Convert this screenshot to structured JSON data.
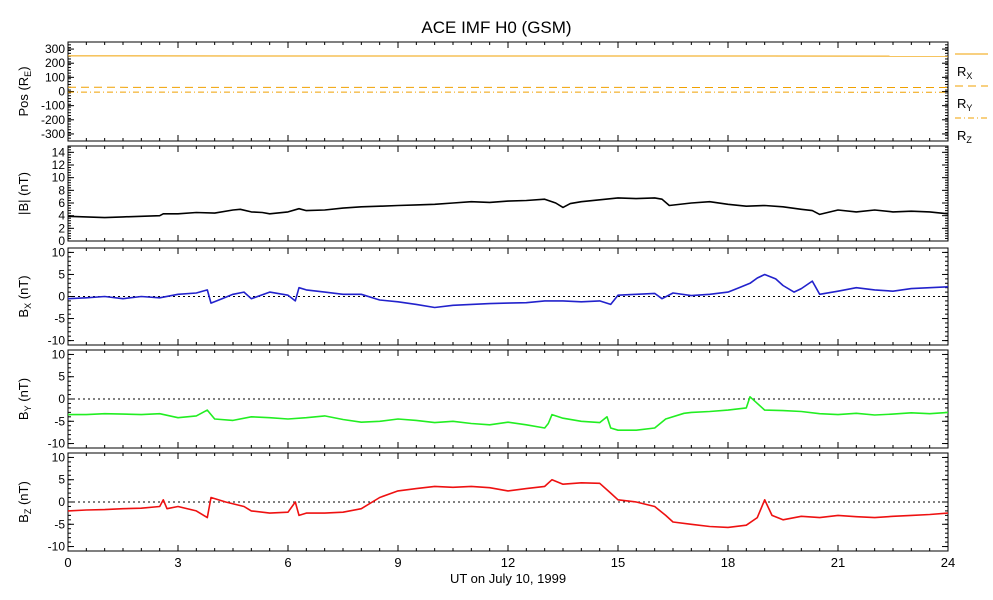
{
  "title": "ACE IMF H0 (GSM)",
  "xlabel": "UT on July 10, 1999",
  "x_ticks": [
    0,
    3,
    6,
    9,
    12,
    15,
    18,
    21,
    24
  ],
  "xlim": [
    0,
    24
  ],
  "colors": {
    "black": "#000000",
    "blue": "#2222cc",
    "green": "#22ee22",
    "red": "#ee1111",
    "orange": "#f0a000"
  },
  "chart_data": [
    {
      "type": "line",
      "panel": "position",
      "ylabel": "Pos (R",
      "ylabel_sub": "E",
      "ylabel_end": ")",
      "ylim": [
        -350,
        350
      ],
      "y_ticks": [
        -300,
        -200,
        -100,
        0,
        100,
        200,
        300
      ],
      "y_tick_labels": [
        "-300",
        "-200",
        "-100",
        "0",
        "100",
        "200",
        "300"
      ],
      "series": [
        {
          "name": "RX",
          "label_main": "R",
          "label_sub": "X",
          "style": "solid",
          "color": "#f0a000",
          "x": [
            0,
            24
          ],
          "values": [
            252,
            250
          ]
        },
        {
          "name": "RY",
          "label_main": "R",
          "label_sub": "Y",
          "style": "dashed",
          "color": "#f0a000",
          "x": [
            0,
            24
          ],
          "values": [
            30,
            28
          ]
        },
        {
          "name": "RZ",
          "label_main": "R",
          "label_sub": "Z",
          "style": "dashdot",
          "color": "#f0a000",
          "x": [
            0,
            24
          ],
          "values": [
            -4,
            -5
          ]
        }
      ]
    },
    {
      "type": "line",
      "panel": "Bmag",
      "ylabel": "|B| (nT)",
      "ylim": [
        0,
        15
      ],
      "y_ticks": [
        0,
        2,
        4,
        6,
        8,
        10,
        12,
        14
      ],
      "y_tick_labels": [
        "0",
        "2",
        "4",
        "6",
        "8",
        "10",
        "12",
        "14"
      ],
      "zero_line": false,
      "series": [
        {
          "color": "#000000",
          "x": [
            0,
            0.5,
            1,
            1.5,
            2,
            2.5,
            2.6,
            3,
            3.5,
            4,
            4.5,
            4.7,
            5,
            5.3,
            5.5,
            6,
            6.3,
            6.5,
            7,
            7.5,
            8,
            8.5,
            9,
            9.5,
            10,
            10.5,
            11,
            11.5,
            12,
            12.5,
            13,
            13.3,
            13.5,
            13.7,
            14,
            14.5,
            15,
            15.5,
            16,
            16.2,
            16.4,
            17,
            17.5,
            18,
            18.5,
            19,
            19.5,
            20,
            20.3,
            20.5,
            21,
            21.5,
            22,
            22.5,
            23,
            23.5,
            24
          ],
          "values": [
            3.9,
            3.8,
            3.7,
            3.8,
            3.9,
            4.0,
            4.3,
            4.3,
            4.5,
            4.4,
            4.9,
            5.0,
            4.6,
            4.5,
            4.3,
            4.6,
            5.1,
            4.8,
            4.9,
            5.2,
            5.4,
            5.5,
            5.6,
            5.7,
            5.8,
            6.0,
            6.2,
            6.1,
            6.3,
            6.4,
            6.6,
            6.0,
            5.3,
            5.9,
            6.2,
            6.5,
            6.8,
            6.7,
            6.8,
            6.6,
            5.6,
            6.0,
            6.2,
            5.8,
            5.5,
            5.6,
            5.4,
            5.0,
            4.8,
            4.2,
            4.9,
            4.6,
            4.9,
            4.6,
            4.7,
            4.6,
            4.3
          ]
        }
      ]
    },
    {
      "type": "line",
      "panel": "Bx",
      "ylabel": "B",
      "ylabel_sub": "X",
      "ylabel_end": " (nT)",
      "ylim": [
        -11,
        11
      ],
      "y_ticks": [
        -10,
        -5,
        0,
        5,
        10
      ],
      "y_tick_labels": [
        "-10",
        "-5",
        "0",
        "5",
        "10"
      ],
      "zero_line": true,
      "series": [
        {
          "color": "#2222cc",
          "x": [
            0,
            0.5,
            1,
            1.5,
            2,
            2.5,
            3,
            3.5,
            3.8,
            3.9,
            4.2,
            4.5,
            4.8,
            5,
            5.5,
            6,
            6.2,
            6.3,
            6.5,
            7,
            7.5,
            8,
            8.5,
            9,
            9.5,
            10,
            10.5,
            11,
            11.5,
            12,
            12.5,
            13,
            13.5,
            14,
            14.5,
            14.8,
            15,
            15.5,
            16,
            16.2,
            16.5,
            17,
            17.5,
            18,
            18.3,
            18.6,
            18.8,
            19,
            19.3,
            19.5,
            19.8,
            20,
            20.3,
            20.5,
            21,
            21.5,
            22,
            22.5,
            23,
            23.5,
            24
          ],
          "values": [
            -0.5,
            -0.3,
            0,
            -0.5,
            0,
            -0.3,
            0.5,
            0.8,
            1.5,
            -1.5,
            -0.5,
            0.5,
            1,
            -0.5,
            1,
            0.3,
            -1,
            2,
            1.5,
            1,
            0.5,
            0.5,
            -0.8,
            -1.2,
            -1.8,
            -2.5,
            -2.0,
            -1.8,
            -1.6,
            -1.5,
            -1.4,
            -1.0,
            -1.0,
            -1.2,
            -1.0,
            -1.8,
            0.3,
            0.5,
            0.7,
            -0.5,
            0.8,
            0.2,
            0.5,
            1.0,
            2.0,
            3.0,
            4.2,
            5.0,
            4.0,
            2.5,
            1.0,
            1.8,
            3.5,
            0.5,
            1.2,
            2.0,
            1.5,
            1.2,
            1.8,
            2.0,
            2.2
          ]
        }
      ]
    },
    {
      "type": "line",
      "panel": "By",
      "ylabel": "B",
      "ylabel_sub": "Y",
      "ylabel_end": " (nT)",
      "ylim": [
        -11,
        11
      ],
      "y_ticks": [
        -10,
        -5,
        0,
        5,
        10
      ],
      "y_tick_labels": [
        "-10",
        "-5",
        "0",
        "5",
        "10"
      ],
      "zero_line": true,
      "series": [
        {
          "color": "#22ee22",
          "x": [
            0,
            0.5,
            1,
            1.5,
            2,
            2.5,
            3,
            3.5,
            3.8,
            4,
            4.5,
            5,
            5.5,
            6,
            6.5,
            7,
            7.5,
            8,
            8.5,
            9,
            9.5,
            10,
            10.5,
            11,
            11.5,
            12,
            12.5,
            13,
            13.1,
            13.2,
            13.5,
            14,
            14.5,
            14.7,
            14.8,
            15,
            15.5,
            16,
            16.3,
            16.8,
            17,
            17.5,
            18,
            18.5,
            18.6,
            19,
            19.5,
            20,
            20.5,
            21,
            21.5,
            22,
            22.5,
            23,
            23.5,
            24
          ],
          "values": [
            -3.5,
            -3.5,
            -3.3,
            -3.4,
            -3.5,
            -3.3,
            -4.2,
            -3.8,
            -2.5,
            -4.5,
            -4.8,
            -4.0,
            -4.2,
            -4.5,
            -4.2,
            -3.8,
            -4.6,
            -5.2,
            -5.0,
            -4.5,
            -4.8,
            -5.3,
            -5.0,
            -5.5,
            -5.8,
            -5.2,
            -5.8,
            -6.5,
            -5.5,
            -3.5,
            -4.3,
            -5.0,
            -5.3,
            -4.0,
            -6.5,
            -7.0,
            -7.0,
            -6.5,
            -4.5,
            -3.2,
            -3.0,
            -2.8,
            -2.5,
            -2.0,
            0.5,
            -2.5,
            -2.6,
            -2.8,
            -3.3,
            -3.5,
            -3.2,
            -3.6,
            -3.4,
            -3.1,
            -3.3,
            -3.0
          ]
        }
      ]
    },
    {
      "type": "line",
      "panel": "Bz",
      "ylabel": "B",
      "ylabel_sub": "Z",
      "ylabel_end": " (nT)",
      "ylim": [
        -11,
        11
      ],
      "y_ticks": [
        -10,
        -5,
        0,
        5,
        10
      ],
      "y_tick_labels": [
        "-10",
        "-5",
        "0",
        "5",
        "10"
      ],
      "zero_line": true,
      "series": [
        {
          "color": "#ee1111",
          "x": [
            0,
            0.5,
            1,
            1.5,
            2,
            2.5,
            2.6,
            2.7,
            3,
            3.5,
            3.8,
            3.9,
            4.3,
            4.8,
            5,
            5.5,
            6,
            6.2,
            6.3,
            6.5,
            7,
            7.5,
            8,
            8.5,
            9,
            9.5,
            10,
            10.5,
            11,
            11.5,
            12,
            12.5,
            13,
            13.2,
            13.5,
            14,
            14.5,
            14.8,
            15,
            15.5,
            16,
            16.3,
            16.5,
            17,
            17.5,
            18,
            18.5,
            18.8,
            19,
            19.2,
            19.5,
            20,
            20.5,
            21,
            21.5,
            22,
            22.5,
            23,
            23.5,
            24
          ],
          "values": [
            -2.0,
            -1.8,
            -1.7,
            -1.5,
            -1.4,
            -1.0,
            0.5,
            -1.5,
            -1.0,
            -2.0,
            -3.5,
            1.0,
            0.0,
            -1.0,
            -2.0,
            -2.5,
            -2.3,
            0.0,
            -3.0,
            -2.5,
            -2.5,
            -2.3,
            -1.5,
            1.0,
            2.5,
            3.0,
            3.5,
            3.3,
            3.5,
            3.2,
            2.5,
            3.0,
            3.5,
            5.0,
            4.0,
            4.3,
            4.2,
            2.0,
            0.5,
            0.0,
            -1.0,
            -3.0,
            -4.5,
            -5.0,
            -5.5,
            -5.7,
            -5.2,
            -3.5,
            0.5,
            -3.0,
            -4.0,
            -3.2,
            -3.5,
            -3.0,
            -3.3,
            -3.5,
            -3.2,
            -3.0,
            -2.8,
            -2.5
          ]
        }
      ]
    }
  ]
}
